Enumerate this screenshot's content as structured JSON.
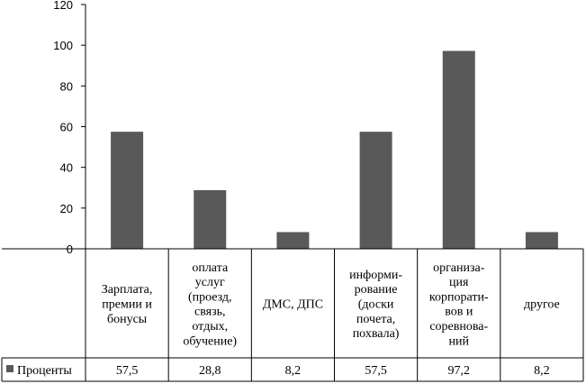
{
  "chart_data": {
    "type": "bar",
    "categories": [
      [
        "Зарплата,",
        "премии и",
        "бонусы"
      ],
      [
        "оплата",
        "услуг",
        "(проезд,",
        "связь,",
        "отдых,",
        "обучение)"
      ],
      [
        "ДМС, ДПС"
      ],
      [
        "информи-",
        "рование",
        "(доски",
        "почета,",
        "похвала)"
      ],
      [
        "организа-",
        "ция",
        "корпорати-",
        "вов и",
        "соревнова-",
        "ний"
      ],
      [
        "другое"
      ]
    ],
    "series": [
      {
        "name": "Проценты",
        "values": [
          57.5,
          28.8,
          8.2,
          57.5,
          97.2,
          8.2
        ],
        "value_labels": [
          "57,5",
          "28,8",
          "8,2",
          "57,5",
          "97,2",
          "8,2"
        ]
      }
    ],
    "y_ticks": [
      "0",
      "20",
      "40",
      "60",
      "80",
      "100",
      "120"
    ],
    "ylim": [
      0,
      120
    ],
    "legend_position": "table-left",
    "bar_color": "#595959",
    "grid": false
  }
}
